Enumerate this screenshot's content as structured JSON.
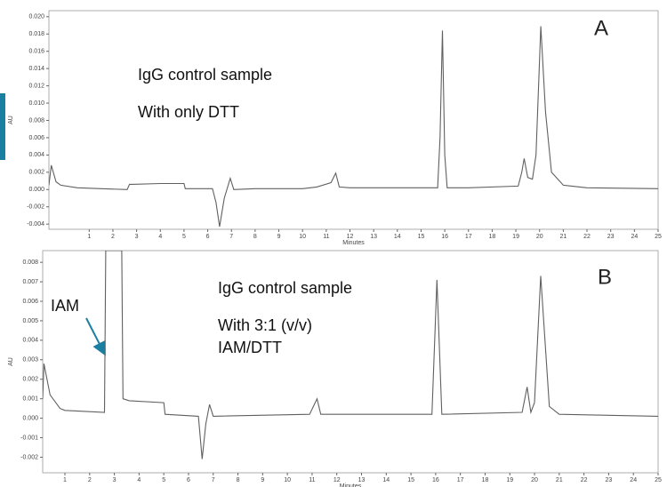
{
  "chart_data": [
    {
      "type": "line",
      "x_label": "Minutes",
      "y_label": "AU",
      "annotations": [
        "A",
        "IgG control sample",
        "With only DTT"
      ],
      "color": "#606060",
      "xlim": [
        -0.7,
        25
      ],
      "ylim": [
        -0.0046,
        0.0207
      ],
      "xticks": [
        1,
        2,
        3,
        4,
        5,
        6,
        7,
        8,
        9,
        10,
        11,
        12,
        13,
        14,
        15,
        16,
        17,
        18,
        19,
        20,
        21,
        22,
        23,
        24,
        25
      ],
      "yticks": [
        {
          "value": 0.02,
          "label": "0.020"
        },
        {
          "value": 0.018,
          "label": "0.018"
        },
        {
          "value": 0.016,
          "label": "0.016"
        },
        {
          "value": 0.014,
          "label": "0.014"
        },
        {
          "value": 0.012,
          "label": "0.012"
        },
        {
          "value": 0.01,
          "label": "0.010"
        },
        {
          "value": 0.008,
          "label": "0.008"
        },
        {
          "value": 0.006,
          "label": "0.006"
        },
        {
          "value": 0.004,
          "label": "0.004"
        },
        {
          "value": 0.002,
          "label": "0.002"
        },
        {
          "value": 0,
          "label": "0.000"
        },
        {
          "value": -0.002,
          "label": "-0.002"
        },
        {
          "value": -0.004,
          "label": "-0.004"
        }
      ],
      "x": [
        -0.7,
        -0.6,
        -0.4,
        -0.2,
        0.5,
        1.5,
        2.6,
        2.7,
        2.8,
        4.0,
        5.0,
        5.05,
        6.2,
        6.35,
        6.5,
        6.7,
        6.95,
        7.1,
        8.0,
        10.0,
        10.6,
        11.2,
        11.4,
        11.55,
        12.0,
        15.7,
        15.8,
        15.9,
        16.0,
        16.1,
        17.0,
        19.1,
        19.25,
        19.35,
        19.5,
        19.7,
        19.85,
        20.05,
        20.25,
        20.5,
        21.0,
        22.0,
        25.0
      ],
      "values": [
        0.0005,
        0.0028,
        0.0009,
        0.0005,
        0.0002,
        0.0001,
        0.0,
        0.0006,
        0.0006,
        0.0007,
        0.0007,
        0.0001,
        0.0001,
        -0.0015,
        -0.0043,
        -0.001,
        0.0013,
        0.0,
        0.0001,
        0.0001,
        0.0003,
        0.0008,
        0.0019,
        0.0003,
        0.0002,
        0.0002,
        0.006,
        0.0184,
        0.004,
        0.0002,
        0.0002,
        0.0004,
        0.002,
        0.0036,
        0.0014,
        0.0012,
        0.004,
        0.0189,
        0.009,
        0.002,
        0.0005,
        0.0002,
        0.0001
      ]
    },
    {
      "type": "line",
      "x_label": "Minutes",
      "y_label": "AU",
      "annotations": [
        "B",
        "IgG control sample",
        "With 3:1 (v/v)",
        "IAM/DTT",
        "IAM"
      ],
      "color": "#606060",
      "xlim": [
        0.1,
        25
      ],
      "ylim": [
        -0.0028,
        0.0086
      ],
      "xticks": [
        1,
        2,
        3,
        4,
        5,
        6,
        7,
        8,
        9,
        10,
        11,
        12,
        13,
        14,
        15,
        16,
        17,
        18,
        19,
        20,
        21,
        22,
        23,
        24,
        25
      ],
      "yticks": [
        {
          "value": 0.008,
          "label": "0.008"
        },
        {
          "value": 0.007,
          "label": "0.007"
        },
        {
          "value": 0.006,
          "label": "0.006"
        },
        {
          "value": 0.005,
          "label": "0.005"
        },
        {
          "value": 0.004,
          "label": "0.004"
        },
        {
          "value": 0.003,
          "label": "0.003"
        },
        {
          "value": 0.002,
          "label": "0.002"
        },
        {
          "value": 0.001,
          "label": "0.001"
        },
        {
          "value": 0,
          "label": "0.000"
        },
        {
          "value": -0.001,
          "label": "-0.001"
        },
        {
          "value": -0.002,
          "label": "-0.002"
        }
      ],
      "x": [
        0.1,
        0.15,
        0.4,
        0.8,
        1.0,
        2.6,
        2.65,
        3.3,
        3.35,
        3.6,
        5.0,
        5.05,
        6.4,
        6.55,
        6.7,
        6.85,
        7.0,
        10.9,
        11.2,
        11.35,
        15.85,
        16.05,
        16.25,
        19.5,
        19.7,
        19.85,
        20.0,
        20.25,
        20.6,
        21.0,
        25.0
      ],
      "values": [
        0.001,
        0.0028,
        0.0012,
        0.0005,
        0.0004,
        0.0003,
        0.0086,
        0.0086,
        0.001,
        0.0009,
        0.0008,
        0.0002,
        0.0001,
        -0.0021,
        -0.0003,
        0.0007,
        0.0001,
        0.0002,
        0.001,
        0.0002,
        0.0002,
        0.0071,
        0.0002,
        0.0003,
        0.0016,
        0.0003,
        0.0008,
        0.0073,
        0.0006,
        0.0002,
        0.0001
      ]
    }
  ]
}
